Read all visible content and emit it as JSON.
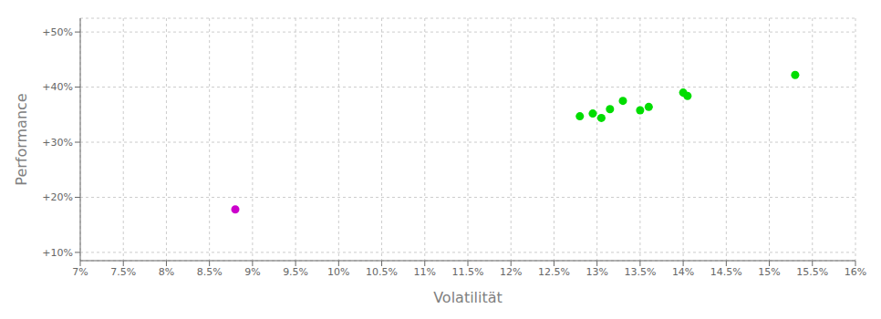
{
  "chart_data": {
    "type": "scatter",
    "xlabel": "Volatilität",
    "ylabel": "Performance",
    "xlim": [
      0.07,
      0.16
    ],
    "ylim": [
      0.085,
      0.525
    ],
    "xticks": [
      {
        "value": 0.07,
        "label": "7%"
      },
      {
        "value": 0.075,
        "label": "7.5%"
      },
      {
        "value": 0.08,
        "label": "8%"
      },
      {
        "value": 0.085,
        "label": "8.5%"
      },
      {
        "value": 0.09,
        "label": "9%"
      },
      {
        "value": 0.095,
        "label": "9.5%"
      },
      {
        "value": 0.1,
        "label": "10%"
      },
      {
        "value": 0.105,
        "label": "10.5%"
      },
      {
        "value": 0.11,
        "label": "11%"
      },
      {
        "value": 0.115,
        "label": "11.5%"
      },
      {
        "value": 0.12,
        "label": "12%"
      },
      {
        "value": 0.125,
        "label": "12.5%"
      },
      {
        "value": 0.13,
        "label": "13%"
      },
      {
        "value": 0.135,
        "label": "13.5%"
      },
      {
        "value": 0.14,
        "label": "14%"
      },
      {
        "value": 0.145,
        "label": "14.5%"
      },
      {
        "value": 0.15,
        "label": "15%"
      },
      {
        "value": 0.155,
        "label": "15.5%"
      },
      {
        "value": 0.16,
        "label": "16%"
      }
    ],
    "yticks": [
      {
        "value": 0.1,
        "label": "+10%"
      },
      {
        "value": 0.2,
        "label": "+20%"
      },
      {
        "value": 0.3,
        "label": "+30%"
      },
      {
        "value": 0.4,
        "label": "+40%"
      },
      {
        "value": 0.5,
        "label": "+50%"
      }
    ],
    "grid": true,
    "series": [
      {
        "color": "#00dd00",
        "x": [
          0.128,
          0.1295,
          0.1305,
          0.1315,
          0.133,
          0.135,
          0.136,
          0.14,
          0.1405,
          0.153
        ],
        "values": [
          0.347,
          0.352,
          0.344,
          0.36,
          0.375,
          0.358,
          0.364,
          0.39,
          0.384,
          0.422
        ]
      },
      {
        "color": "#cc00cc",
        "x": [
          0.088
        ],
        "values": [
          0.178
        ]
      }
    ]
  }
}
